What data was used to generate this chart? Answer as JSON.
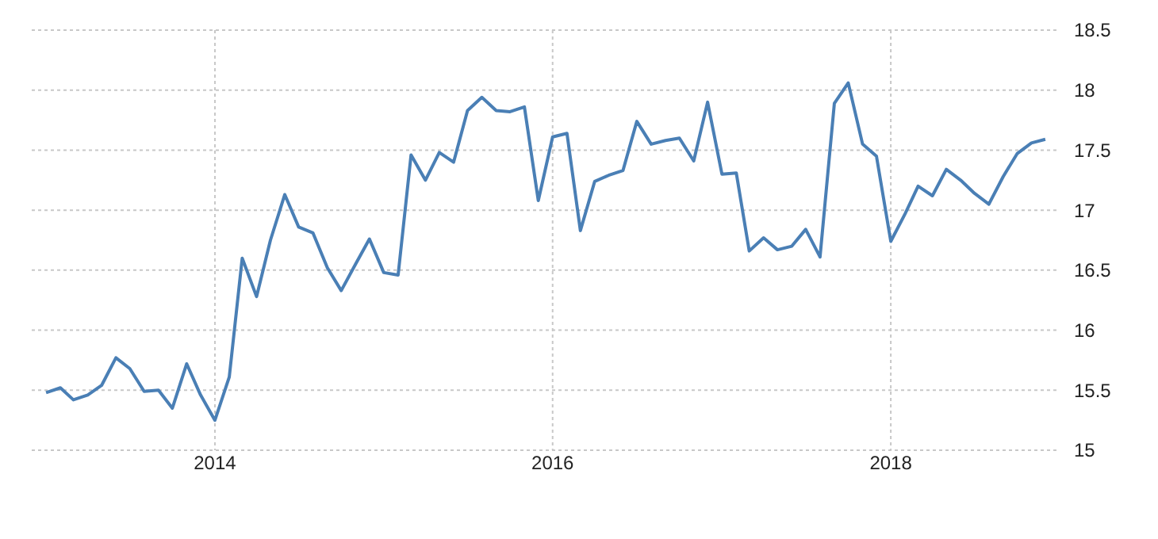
{
  "chart_data": {
    "type": "line",
    "x": [
      "2013-01",
      "2013-02",
      "2013-03",
      "2013-04",
      "2013-05",
      "2013-06",
      "2013-07",
      "2013-08",
      "2013-09",
      "2013-10",
      "2013-11",
      "2013-12",
      "2014-01",
      "2014-02",
      "2014-03",
      "2014-04",
      "2014-05",
      "2014-06",
      "2014-07",
      "2014-08",
      "2014-09",
      "2014-10",
      "2014-11",
      "2014-12",
      "2015-01",
      "2015-02",
      "2015-03",
      "2015-04",
      "2015-05",
      "2015-06",
      "2015-07",
      "2015-08",
      "2015-09",
      "2015-10",
      "2015-11",
      "2015-12",
      "2016-01",
      "2016-02",
      "2016-03",
      "2016-04",
      "2016-05",
      "2016-06",
      "2016-07",
      "2016-08",
      "2016-09",
      "2016-10",
      "2016-11",
      "2016-12",
      "2017-01",
      "2017-02",
      "2017-03",
      "2017-04",
      "2017-05",
      "2017-06",
      "2017-07",
      "2017-08",
      "2017-09",
      "2017-10",
      "2017-11",
      "2017-12",
      "2018-01",
      "2018-02",
      "2018-03",
      "2018-04",
      "2018-05",
      "2018-06",
      "2018-07",
      "2018-08",
      "2018-09",
      "2018-10",
      "2018-11",
      "2018-12"
    ],
    "series": [
      {
        "color": "#4a7fb5",
        "values": [
          15.48,
          15.52,
          15.42,
          15.46,
          15.54,
          15.77,
          15.68,
          15.49,
          15.5,
          15.35,
          15.72,
          15.46,
          15.25,
          15.61,
          16.6,
          16.28,
          16.75,
          17.13,
          16.86,
          16.81,
          16.52,
          16.33,
          16.55,
          16.76,
          16.48,
          16.46,
          17.46,
          17.25,
          17.48,
          17.4,
          17.83,
          17.94,
          17.83,
          17.82,
          17.86,
          17.08,
          17.61,
          17.64,
          16.83,
          17.24,
          17.29,
          17.33,
          17.74,
          17.55,
          17.58,
          17.6,
          17.41,
          17.9,
          17.3,
          17.31,
          16.66,
          16.77,
          16.67,
          16.7,
          16.84,
          16.61,
          17.89,
          18.06,
          17.55,
          17.45,
          16.74,
          16.97,
          17.2,
          17.12,
          17.34,
          17.25,
          17.14,
          17.05,
          17.28,
          17.47,
          17.56,
          17.59
        ]
      }
    ],
    "xlim": [
      "2012-12",
      "2019-01"
    ],
    "xticks": [
      {
        "value": "2014-01",
        "label": "2014"
      },
      {
        "value": "2016-01",
        "label": "2016"
      },
      {
        "value": "2018-01",
        "label": "2018"
      }
    ],
    "ylim": [
      15,
      18.5
    ],
    "yticks": [
      15,
      15.5,
      16,
      16.5,
      17,
      17.5,
      18,
      18.5
    ],
    "grid": true,
    "marker": "none",
    "line_style": "solid"
  }
}
